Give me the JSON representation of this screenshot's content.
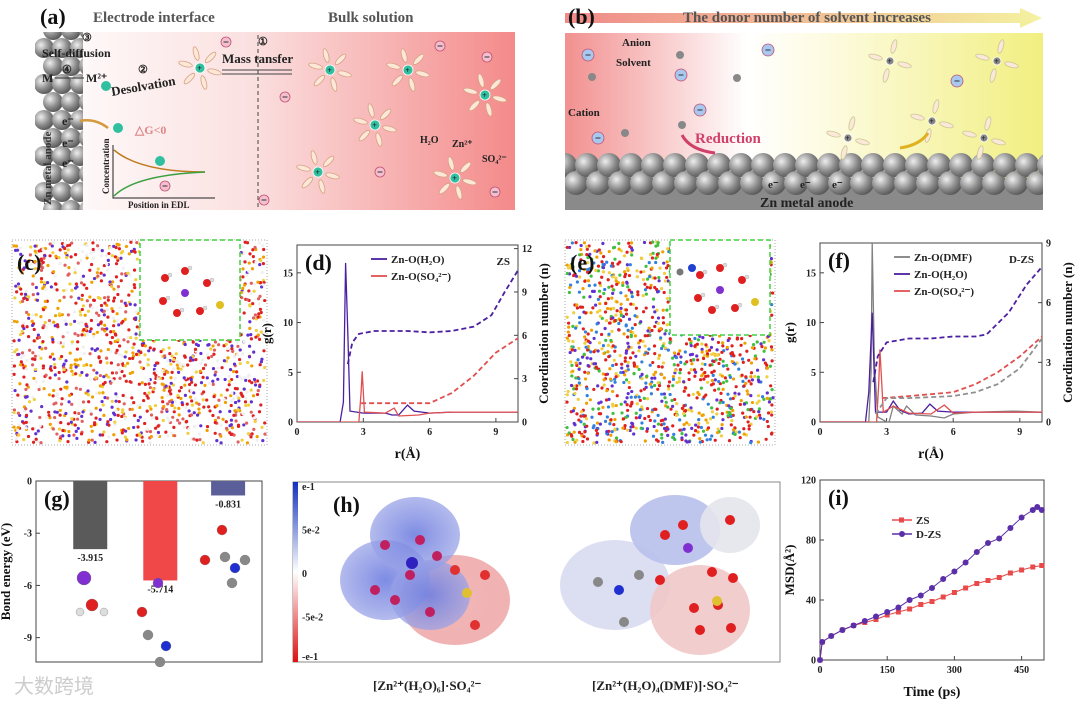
{
  "panel_a": {
    "label": "(a)",
    "title_left": "Electrode interface",
    "title_right": "Bulk solution",
    "self_diffusion": "Self-diffusion",
    "step1": "①",
    "step2": "②",
    "step3": "③",
    "step4": "④",
    "m_left": "M",
    "m_right": "M²⁺",
    "desolvation": "Desolvation",
    "mass_transfer": "Mass tansfer",
    "electrode": "Zn metal anode",
    "electron": "e⁻",
    "delta_g": "△G<0",
    "h2o": "H₂O",
    "zn": "Zn²⁺",
    "so4": "SO₄²⁻",
    "inset_ylabel": "Concentration",
    "inset_xlabel": "Position in EDL"
  },
  "panel_b": {
    "label": "(b)",
    "arrow_text": "The donor number of solvent increases",
    "anion": "Anion",
    "solvent": "Solvent",
    "cation": "Cation",
    "reduction": "Reduction",
    "electrode": "Zn metal anode",
    "electron": "e⁻"
  },
  "panel_c": {
    "label": "(c)"
  },
  "panel_e": {
    "label": "(e)"
  },
  "panel_h": {
    "label": "(h)",
    "colorbar_ticks": [
      "e-1",
      "5e-2",
      "0",
      "-5e-2",
      "-e-1"
    ],
    "caption_left": "[Zn²⁺(H₂O)₆]·SO₄²⁻",
    "caption_right": "[Zn²⁺(H₂O)₄(DMF)]·SO₄²⁻"
  },
  "watermark": "大数跨境",
  "colors": {
    "zs_red": "#e84a4a",
    "purple": "#4b1fa0",
    "gray": "#808080",
    "teal": "#2fb8a0"
  },
  "chart_data": [
    {
      "id": "d",
      "type": "line",
      "label": "(d)",
      "annotation": "ZS",
      "xlabel": "r(Å)",
      "ylabel": "g(r)",
      "ylabel_right": "Coordination number (n)",
      "xlim": [
        0,
        10
      ],
      "ylim": [
        0,
        17.8
      ],
      "ylim_right": [
        0,
        12.25
      ],
      "xticks": [
        0,
        3,
        6,
        9
      ],
      "yticks": [
        0,
        5,
        10,
        15
      ],
      "yticks_right": [
        0,
        3,
        6,
        9,
        12
      ],
      "legend": "top-center",
      "series": [
        {
          "name": "Zn-O(H₂O)",
          "color": "#4b1fa0",
          "axis": "left",
          "style": "solid",
          "points": [
            [
              0,
              0
            ],
            [
              1.95,
              0
            ],
            [
              2.1,
              2
            ],
            [
              2.2,
              16
            ],
            [
              2.3,
              9
            ],
            [
              2.4,
              1.1
            ],
            [
              3,
              0.9
            ],
            [
              4,
              0.9
            ],
            [
              4.3,
              0.7
            ],
            [
              4.6,
              0.7
            ],
            [
              5,
              1.7
            ],
            [
              5.3,
              1.1
            ],
            [
              6,
              0.9
            ],
            [
              7,
              1.0
            ],
            [
              8,
              1.0
            ],
            [
              9,
              1.0
            ],
            [
              10,
              1.0
            ]
          ]
        },
        {
          "name": "Zn-O(SO₄²⁻)",
          "color": "#e05050",
          "axis": "left",
          "style": "solid",
          "points": [
            [
              0,
              0
            ],
            [
              2.8,
              0
            ],
            [
              2.9,
              3
            ],
            [
              2.95,
              5.1
            ],
            [
              3.05,
              1
            ],
            [
              4,
              0.9
            ],
            [
              4.4,
              1.4
            ],
            [
              4.6,
              0.6
            ],
            [
              5.5,
              0.7
            ],
            [
              6,
              0.9
            ],
            [
              7,
              1.0
            ],
            [
              8,
              1.0
            ],
            [
              9,
              1.0
            ],
            [
              10,
              1.0
            ]
          ]
        },
        {
          "name": "CN Zn-O(H₂O)",
          "color": "#4b1fa0",
          "axis": "right",
          "style": "dashed",
          "points": [
            [
              2.3,
              4
            ],
            [
              2.5,
              5.5
            ],
            [
              2.8,
              6.1
            ],
            [
              3.5,
              6.3
            ],
            [
              5,
              6.3
            ],
            [
              6,
              6.2
            ],
            [
              7,
              6.3
            ],
            [
              8,
              6.6
            ],
            [
              8.8,
              7.4
            ],
            [
              9.4,
              9
            ],
            [
              10,
              10.5
            ]
          ]
        },
        {
          "name": "CN Zn-O(SO₄²⁻)",
          "color": "#e05050",
          "axis": "right",
          "style": "dashed",
          "points": [
            [
              2.9,
              1.3
            ],
            [
              4,
              1.3
            ],
            [
              5,
              1.3
            ],
            [
              6,
              1.3
            ],
            [
              7,
              2
            ],
            [
              8,
              3.2
            ],
            [
              9,
              4.8
            ],
            [
              10,
              5.8
            ]
          ]
        }
      ]
    },
    {
      "id": "f",
      "type": "line",
      "label": "(f)",
      "annotation": "D-ZS",
      "xlabel": "r(Å)",
      "ylabel": "g(r)",
      "ylabel_right": "Coordination number (n)",
      "xlim": [
        0,
        10
      ],
      "ylim": [
        0,
        18
      ],
      "ylim_right": [
        0,
        9
      ],
      "xticks": [
        0,
        3,
        6,
        9
      ],
      "yticks": [
        0,
        5,
        10,
        15
      ],
      "yticks_right": [
        0,
        3,
        6,
        9
      ],
      "legend": "top-center",
      "series": [
        {
          "name": "Zn-O(DMF)",
          "color": "#808080",
          "axis": "left",
          "style": "solid",
          "points": [
            [
              0,
              0
            ],
            [
              2.2,
              0
            ],
            [
              2.3,
              5
            ],
            [
              2.35,
              18
            ],
            [
              2.45,
              6
            ],
            [
              2.6,
              0.5
            ],
            [
              3.1,
              -0.1
            ],
            [
              3.3,
              1.6
            ],
            [
              3.7,
              0.8
            ],
            [
              3.9,
              1.6
            ],
            [
              4.3,
              0.7
            ],
            [
              5,
              0.6
            ],
            [
              5.6,
              0.4
            ],
            [
              6,
              0.8
            ],
            [
              7,
              1.0
            ],
            [
              8.7,
              1.1
            ],
            [
              10,
              1.0
            ]
          ]
        },
        {
          "name": "Zn-O(H₂O)",
          "color": "#4b1fa0",
          "axis": "left",
          "style": "solid",
          "points": [
            [
              0,
              0
            ],
            [
              2.05,
              0
            ],
            [
              2.2,
              3
            ],
            [
              2.35,
              11
            ],
            [
              2.5,
              1
            ],
            [
              3,
              1
            ],
            [
              3.3,
              2.1
            ],
            [
              3.6,
              1.2
            ],
            [
              4,
              0.8
            ],
            [
              4.6,
              0.9
            ],
            [
              4.95,
              1.8
            ],
            [
              5.3,
              1.1
            ],
            [
              6,
              1.0
            ],
            [
              7,
              1.0
            ],
            [
              8,
              1.0
            ],
            [
              9,
              1.0
            ],
            [
              10,
              1.0
            ]
          ]
        },
        {
          "name": "Zn-O(SO₄²⁻)",
          "color": "#e05050",
          "axis": "left",
          "style": "solid",
          "points": [
            [
              0,
              0
            ],
            [
              2.55,
              0
            ],
            [
              2.65,
              4
            ],
            [
              2.7,
              7.3
            ],
            [
              2.85,
              1
            ],
            [
              3.3,
              1.6
            ],
            [
              3.6,
              1.3
            ],
            [
              4,
              0.9
            ],
            [
              5,
              0.8
            ],
            [
              5.6,
              1.7
            ],
            [
              6,
              0.9
            ],
            [
              7,
              1.0
            ],
            [
              8,
              1.0
            ],
            [
              9,
              1.0
            ],
            [
              10,
              1.0
            ]
          ]
        },
        {
          "name": "CN Zn-O(H₂O)",
          "color": "#4b1fa0",
          "axis": "right",
          "style": "dashed",
          "points": [
            [
              2.4,
              2
            ],
            [
              2.6,
              3.3
            ],
            [
              3,
              4
            ],
            [
              4,
              4.2
            ],
            [
              5,
              4.2
            ],
            [
              6,
              4.3
            ],
            [
              7,
              4.3
            ],
            [
              7.5,
              4.4
            ],
            [
              8.5,
              5.5
            ],
            [
              9.3,
              6.9
            ],
            [
              10,
              7.8
            ]
          ]
        },
        {
          "name": "CN Zn-O(SO₄²⁻)",
          "color": "#e05050",
          "axis": "right",
          "style": "dashed",
          "points": [
            [
              2.8,
              1.2
            ],
            [
              4,
              1.3
            ],
            [
              6,
              1.5
            ],
            [
              7,
              1.9
            ],
            [
              8,
              2.5
            ],
            [
              9,
              3.3
            ],
            [
              10,
              4.3
            ]
          ]
        },
        {
          "name": "CN Zn-O(DMF)",
          "color": "#909090",
          "axis": "right",
          "style": "dashed",
          "points": [
            [
              2.5,
              0.4
            ],
            [
              3,
              1.2
            ],
            [
              4,
              1.2
            ],
            [
              6,
              1.3
            ],
            [
              7,
              1.5
            ],
            [
              8,
              1.9
            ],
            [
              9,
              2.7
            ],
            [
              10,
              4.2
            ]
          ]
        }
      ]
    },
    {
      "id": "g",
      "type": "bar",
      "label": "(g)",
      "ylabel": "Bond energy (eV)",
      "ylim": [
        -10.4,
        0
      ],
      "yticks": [
        0,
        -3,
        -6,
        -9
      ],
      "categories": [
        "Zn–H₂O",
        "Zn–DMF",
        "H₂O–DMF"
      ],
      "values": [
        -3.915,
        -5.714,
        -0.831
      ],
      "data_labels": [
        "-3.915",
        "-5.714",
        "-0.831"
      ],
      "bar_colors": [
        "#5a5a5a",
        "#f04848",
        "#5a5f9a"
      ]
    },
    {
      "id": "i",
      "type": "scatter",
      "label": "(i)",
      "xlabel": "Time (ps)",
      "ylabel": "MSD(Å²)",
      "xlim": [
        0,
        500
      ],
      "ylim": [
        0,
        120
      ],
      "xticks": [
        0,
        150,
        300,
        450
      ],
      "yticks": [
        0,
        40,
        80,
        120
      ],
      "legend": "top-center",
      "series": [
        {
          "name": "ZS",
          "color": "#e84a4a",
          "marker": "square",
          "points": [
            [
              0,
              0
            ],
            [
              5,
              12
            ],
            [
              25,
              16
            ],
            [
              50,
              20
            ],
            [
              75,
              23
            ],
            [
              100,
              25
            ],
            [
              125,
              27
            ],
            [
              150,
              30
            ],
            [
              175,
              32
            ],
            [
              200,
              34
            ],
            [
              225,
              37
            ],
            [
              250,
              39
            ],
            [
              275,
              42
            ],
            [
              300,
              45
            ],
            [
              325,
              48
            ],
            [
              350,
              51
            ],
            [
              375,
              53
            ],
            [
              400,
              55
            ],
            [
              425,
              58
            ],
            [
              450,
              60
            ],
            [
              475,
              62
            ],
            [
              495,
              63
            ]
          ]
        },
        {
          "name": "D-ZS",
          "color": "#5a2fa8",
          "marker": "circle",
          "points": [
            [
              0,
              0
            ],
            [
              5,
              12
            ],
            [
              25,
              16
            ],
            [
              50,
              20
            ],
            [
              75,
              23
            ],
            [
              100,
              26
            ],
            [
              125,
              29
            ],
            [
              150,
              32
            ],
            [
              175,
              35
            ],
            [
              200,
              40
            ],
            [
              225,
              43
            ],
            [
              250,
              48
            ],
            [
              275,
              54
            ],
            [
              300,
              59
            ],
            [
              325,
              65
            ],
            [
              350,
              72
            ],
            [
              375,
              78
            ],
            [
              400,
              81
            ],
            [
              425,
              88
            ],
            [
              450,
              95
            ],
            [
              475,
              100
            ],
            [
              485,
              102
            ],
            [
              495,
              100
            ]
          ]
        }
      ]
    }
  ]
}
